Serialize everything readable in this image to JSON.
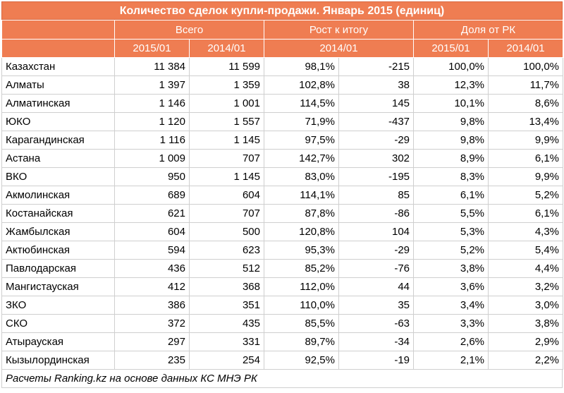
{
  "title": "Количество сделок купли-продажи. Январь 2015 (единиц)",
  "groups": {
    "total": "Всего",
    "growth": "Рост к итогу",
    "share": "Доля от РК"
  },
  "subheaders": {
    "total_2015": "2015/01",
    "total_2014": "2014/01",
    "growth": "2014/01",
    "share_2015": "2015/01",
    "share_2014": "2014/01"
  },
  "rows": [
    {
      "region": "Казахстан",
      "y2015": "11 384",
      "y2014": "11 599",
      "growth_pct": "98,1%",
      "growth_abs": "-215",
      "share2015": "100,0%",
      "share2014": "100,0%"
    },
    {
      "region": "Алматы",
      "y2015": "1 397",
      "y2014": "1 359",
      "growth_pct": "102,8%",
      "growth_abs": "38",
      "share2015": "12,3%",
      "share2014": "11,7%"
    },
    {
      "region": "Алматинская",
      "y2015": "1 146",
      "y2014": "1 001",
      "growth_pct": "114,5%",
      "growth_abs": "145",
      "share2015": "10,1%",
      "share2014": "8,6%"
    },
    {
      "region": "ЮКО",
      "y2015": "1 120",
      "y2014": "1 557",
      "growth_pct": "71,9%",
      "growth_abs": "-437",
      "share2015": "9,8%",
      "share2014": "13,4%"
    },
    {
      "region": "Карагандинская",
      "y2015": "1 116",
      "y2014": "1 145",
      "growth_pct": "97,5%",
      "growth_abs": "-29",
      "share2015": "9,8%",
      "share2014": "9,9%"
    },
    {
      "region": "Астана",
      "y2015": "1 009",
      "y2014": "707",
      "growth_pct": "142,7%",
      "growth_abs": "302",
      "share2015": "8,9%",
      "share2014": "6,1%"
    },
    {
      "region": "ВКО",
      "y2015": "950",
      "y2014": "1 145",
      "growth_pct": "83,0%",
      "growth_abs": "-195",
      "share2015": "8,3%",
      "share2014": "9,9%"
    },
    {
      "region": "Акмолинская",
      "y2015": "689",
      "y2014": "604",
      "growth_pct": "114,1%",
      "growth_abs": "85",
      "share2015": "6,1%",
      "share2014": "5,2%"
    },
    {
      "region": "Костанайская",
      "y2015": "621",
      "y2014": "707",
      "growth_pct": "87,8%",
      "growth_abs": "-86",
      "share2015": "5,5%",
      "share2014": "6,1%"
    },
    {
      "region": "Жамбылская",
      "y2015": "604",
      "y2014": "500",
      "growth_pct": "120,8%",
      "growth_abs": "104",
      "share2015": "5,3%",
      "share2014": "4,3%"
    },
    {
      "region": "Актюбинская",
      "y2015": "594",
      "y2014": "623",
      "growth_pct": "95,3%",
      "growth_abs": "-29",
      "share2015": "5,2%",
      "share2014": "5,4%"
    },
    {
      "region": "Павлодарская",
      "y2015": "436",
      "y2014": "512",
      "growth_pct": "85,2%",
      "growth_abs": "-76",
      "share2015": "3,8%",
      "share2014": "4,4%"
    },
    {
      "region": "Мангистауская",
      "y2015": "412",
      "y2014": "368",
      "growth_pct": "112,0%",
      "growth_abs": "44",
      "share2015": "3,6%",
      "share2014": "3,2%"
    },
    {
      "region": "ЗКО",
      "y2015": "386",
      "y2014": "351",
      "growth_pct": "110,0%",
      "growth_abs": "35",
      "share2015": "3,4%",
      "share2014": "3,0%"
    },
    {
      "region": "СКО",
      "y2015": "372",
      "y2014": "435",
      "growth_pct": "85,5%",
      "growth_abs": "-63",
      "share2015": "3,3%",
      "share2014": "3,8%"
    },
    {
      "region": "Атырауская",
      "y2015": "297",
      "y2014": "331",
      "growth_pct": "89,7%",
      "growth_abs": "-34",
      "share2015": "2,6%",
      "share2014": "2,9%"
    },
    {
      "region": "Кызылординская",
      "y2015": "235",
      "y2014": "254",
      "growth_pct": "92,5%",
      "growth_abs": "-19",
      "share2015": "2,1%",
      "share2014": "2,2%"
    }
  ],
  "footnote": "Расчеты Ranking.kz на основе данных КС МНЭ РК",
  "colors": {
    "header_bg": "#ef7d52",
    "header_text": "#ffffff",
    "grid": "#cfcfcf"
  }
}
